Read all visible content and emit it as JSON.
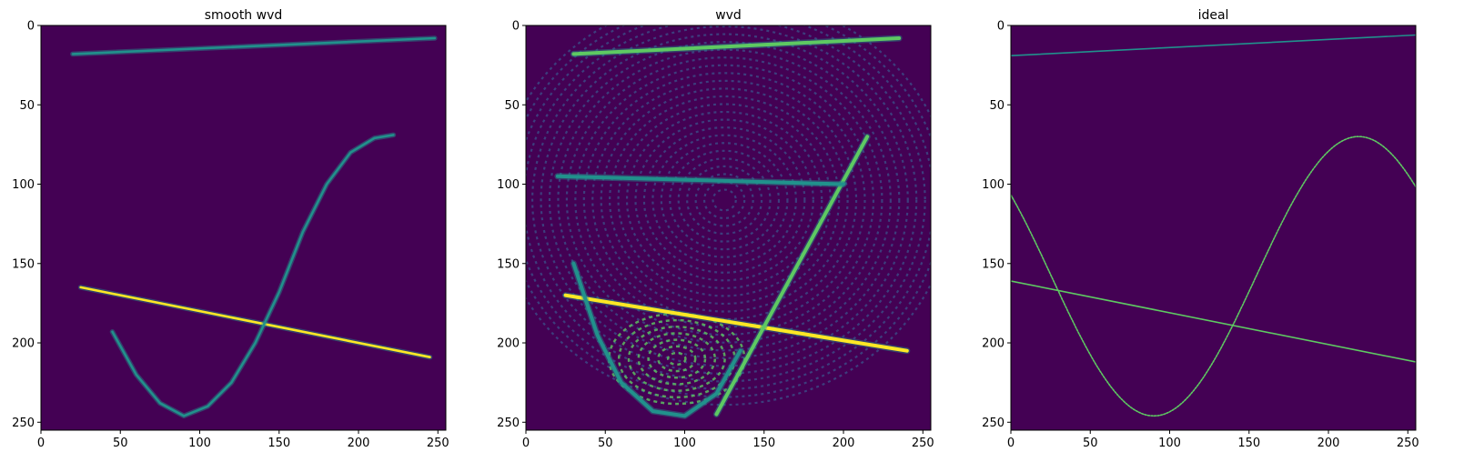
{
  "figure": {
    "background": "#ffffff"
  },
  "colors": {
    "background": "#440154",
    "low": "#3b528b",
    "mid": "#21918c",
    "high": "#5ec962",
    "peak": "#fde725"
  },
  "chart_data": [
    {
      "type": "heatmap",
      "title": "smooth wvd",
      "colormap": "viridis",
      "xlim": [
        0,
        255
      ],
      "ylim": [
        255,
        0
      ],
      "x_ticks": [
        0,
        50,
        100,
        150,
        200,
        250
      ],
      "y_ticks": [
        0,
        50,
        100,
        150,
        200,
        250
      ],
      "grid": false,
      "features": [
        {
          "kind": "line",
          "points": [
            [
              20,
              18
            ],
            [
              248,
              8
            ]
          ],
          "level": 0.6
        },
        {
          "kind": "line",
          "points": [
            [
              25,
              165
            ],
            [
              245,
              209
            ]
          ],
          "level": 0.85
        },
        {
          "kind": "curve",
          "points": [
            [
              45,
              193
            ],
            [
              60,
              220
            ],
            [
              75,
              238
            ],
            [
              90,
              246
            ],
            [
              105,
              240
            ],
            [
              120,
              225
            ],
            [
              135,
              200
            ],
            [
              150,
              168
            ],
            [
              165,
              130
            ],
            [
              180,
              100
            ],
            [
              195,
              80
            ],
            [
              210,
              71
            ],
            [
              222,
              69
            ]
          ],
          "level": 0.55
        }
      ]
    },
    {
      "type": "heatmap",
      "title": "wvd",
      "colormap": "viridis",
      "xlim": [
        0,
        255
      ],
      "ylim": [
        255,
        0
      ],
      "x_ticks": [
        0,
        50,
        100,
        150,
        200,
        250
      ],
      "y_ticks": [
        0,
        50,
        100,
        150,
        200,
        250
      ],
      "grid": false,
      "features": [
        {
          "kind": "line",
          "points": [
            [
              30,
              18
            ],
            [
              235,
              8
            ]
          ],
          "level": 0.75
        },
        {
          "kind": "line",
          "points": [
            [
              25,
              170
            ],
            [
              240,
              205
            ]
          ],
          "level": 0.9
        },
        {
          "kind": "line",
          "points": [
            [
              120,
              245
            ],
            [
              215,
              70
            ]
          ],
          "level": 0.7
        },
        {
          "kind": "line",
          "points": [
            [
              20,
              95
            ],
            [
              200,
              100
            ]
          ],
          "level": 0.6
        },
        {
          "kind": "curve",
          "points": [
            [
              30,
              150
            ],
            [
              45,
              195
            ],
            [
              60,
              225
            ],
            [
              80,
              243
            ],
            [
              100,
              246
            ],
            [
              120,
              232
            ],
            [
              135,
              205
            ]
          ],
          "level": 0.55
        }
      ]
    },
    {
      "type": "heatmap",
      "title": "ideal",
      "colormap": "viridis",
      "xlim": [
        0,
        255
      ],
      "ylim": [
        255,
        0
      ],
      "x_ticks": [
        0,
        50,
        100,
        150,
        200,
        250
      ],
      "y_ticks": [
        0,
        50,
        100,
        150,
        200,
        250
      ],
      "grid": false,
      "features": [
        {
          "kind": "line",
          "points": [
            [
              0,
              19
            ],
            [
              255,
              6
            ]
          ],
          "level": 0.55
        },
        {
          "kind": "line",
          "points": [
            [
              0,
              161
            ],
            [
              255,
              212
            ]
          ],
          "level": 0.65
        },
        {
          "kind": "sine",
          "x_range": [
            0,
            255
          ],
          "center": 158,
          "amplitude": 88,
          "trough_x": 90,
          "period": 258,
          "level": 0.8
        }
      ]
    }
  ]
}
